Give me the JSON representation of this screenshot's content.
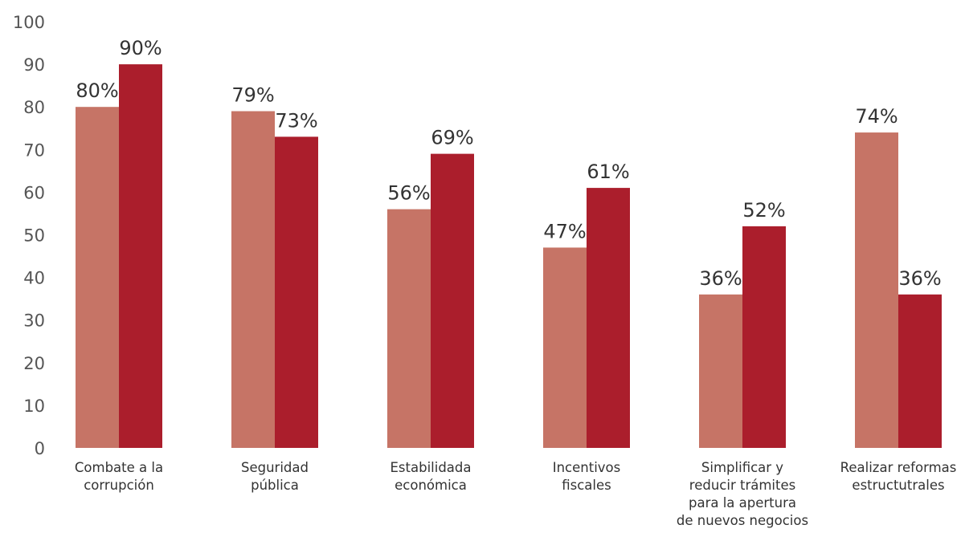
{
  "chart_data": {
    "type": "bar",
    "title": "",
    "xlabel": "",
    "ylabel": "",
    "ylim": [
      0,
      100
    ],
    "yticks": [
      0,
      10,
      20,
      30,
      40,
      50,
      60,
      70,
      80,
      90,
      100
    ],
    "grid": false,
    "categories": [
      [
        "Combate a la",
        "corrupción"
      ],
      [
        "Seguridad",
        "pública"
      ],
      [
        "Estabilidada",
        "económica"
      ],
      [
        "Incentivos",
        "fiscales"
      ],
      [
        "Simplificar y",
        "reducir trámites",
        "para la apertura",
        "de nuevos negocios"
      ],
      [
        "Realizar reformas",
        "estructutrales"
      ]
    ],
    "series": [
      {
        "values": [
          80,
          79,
          56,
          47,
          36,
          74
        ],
        "labels": [
          "80%",
          "79%",
          "56%",
          "47%",
          "36%",
          "74%"
        ],
        "color": "#C67466"
      },
      {
        "values": [
          90,
          73,
          69,
          61,
          52,
          36
        ],
        "labels": [
          "90%",
          "73%",
          "69%",
          "61%",
          "52%",
          "36%"
        ],
        "color": "#AB1E2C"
      }
    ]
  }
}
